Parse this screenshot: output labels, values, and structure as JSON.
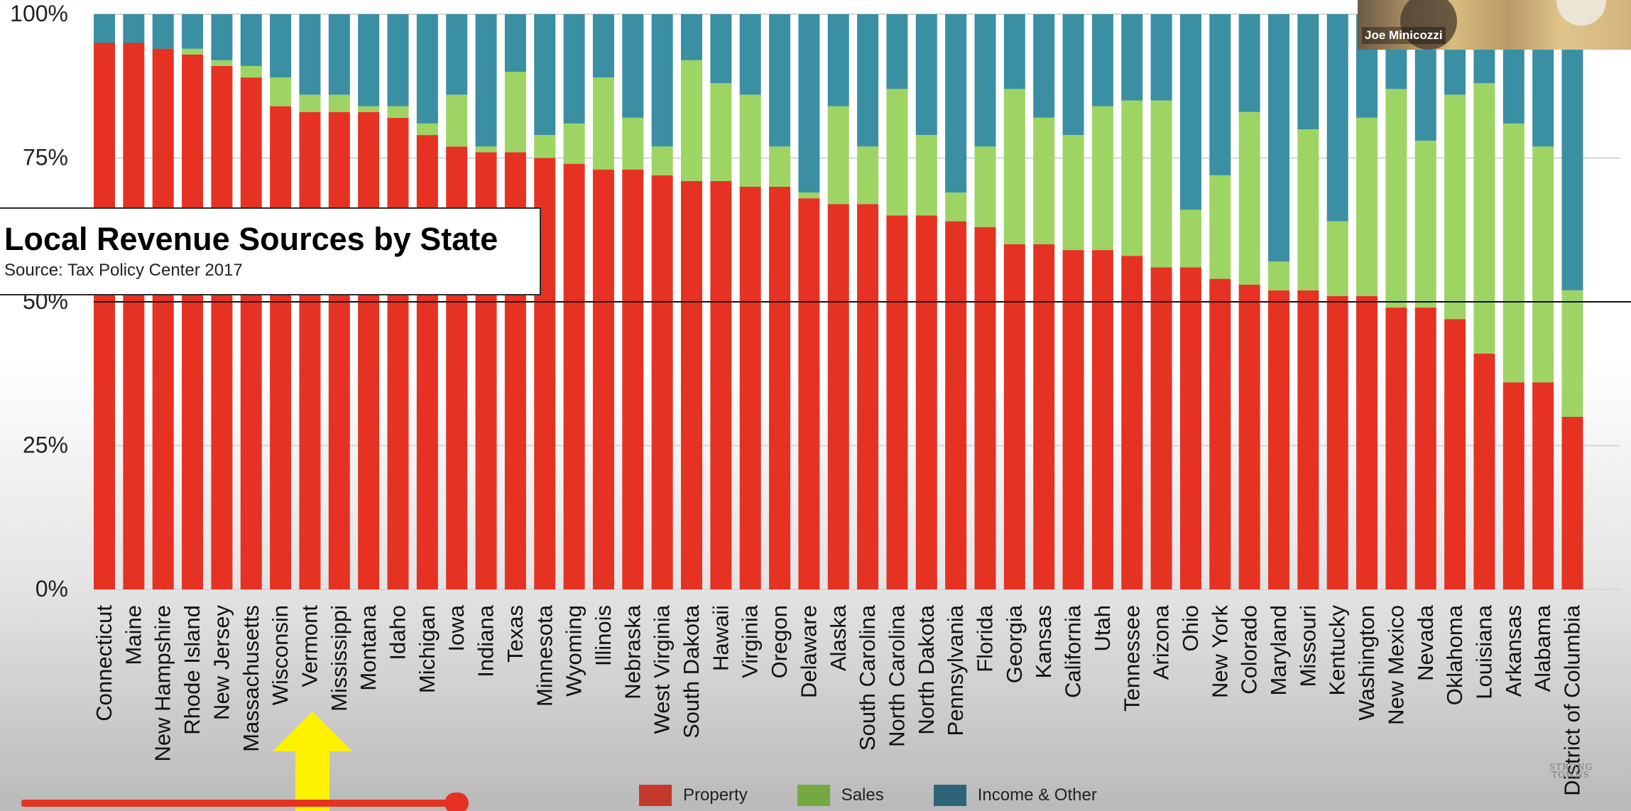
{
  "title": "Local Revenue Sources by State",
  "subtitle": "Source: Tax Policy Center 2017",
  "presenter_name": "Joe Minicozzi",
  "watermark": "STRONG TOWNS",
  "legend": [
    {
      "label": "Property",
      "color": "#c33a2c"
    },
    {
      "label": "Sales",
      "color": "#75a843"
    },
    {
      "label": "Income & Other",
      "color": "#2e6478"
    }
  ],
  "colors": {
    "property": "#e53223",
    "sales": "#9ed464",
    "income_other": "#3a8fa3",
    "pointer_arrow": "#fff200",
    "progress": "#e53223"
  },
  "chart_data": {
    "type": "bar",
    "stacked": true,
    "categories": [
      "Connecticut",
      "Maine",
      "New Hampshire",
      "Rhode Island",
      "New Jersey",
      "Massachusetts",
      "Wisconsin",
      "Vermont",
      "Mississippi",
      "Montana",
      "Idaho",
      "Michigan",
      "Iowa",
      "Indiana",
      "Texas",
      "Minnesota",
      "Wyoming",
      "Illinois",
      "Nebraska",
      "West Virginia",
      "South Dakota",
      "Hawaii",
      "Virginia",
      "Oregon",
      "Delaware",
      "Alaska",
      "South Carolina",
      "North Carolina",
      "North Dakota",
      "Pennsylvania",
      "Florida",
      "Georgia",
      "Kansas",
      "California",
      "Utah",
      "Tennessee",
      "Arizona",
      "Ohio",
      "New York",
      "Colorado",
      "Maryland",
      "Missouri",
      "Kentucky",
      "Washington",
      "New Mexico",
      "Nevada",
      "Oklahoma",
      "Louisiana",
      "Arkansas",
      "Alabama",
      "District of Columbia"
    ],
    "series": [
      {
        "name": "Property",
        "values": [
          95,
          95,
          94,
          93,
          91,
          89,
          84,
          83,
          83,
          83,
          82,
          79,
          77,
          76,
          76,
          75,
          74,
          73,
          73,
          72,
          71,
          71,
          70,
          70,
          68,
          67,
          67,
          65,
          65,
          64,
          63,
          60,
          60,
          59,
          59,
          58,
          56,
          56,
          54,
          53,
          52,
          52,
          51,
          51,
          49,
          49,
          47,
          41,
          36,
          36,
          30
        ]
      },
      {
        "name": "Sales",
        "values": [
          0,
          0,
          0,
          1,
          1,
          2,
          5,
          3,
          3,
          1,
          2,
          2,
          9,
          1,
          14,
          4,
          7,
          16,
          9,
          5,
          21,
          17,
          16,
          7,
          1,
          17,
          10,
          22,
          14,
          5,
          14,
          27,
          22,
          20,
          25,
          27,
          29,
          10,
          18,
          30,
          5,
          28,
          13,
          31,
          38,
          29,
          39,
          47,
          45,
          41,
          22
        ]
      },
      {
        "name": "Income & Other",
        "values": [
          5,
          5,
          6,
          6,
          8,
          9,
          11,
          14,
          14,
          16,
          16,
          19,
          14,
          23,
          10,
          21,
          19,
          11,
          18,
          23,
          8,
          12,
          14,
          23,
          31,
          16,
          23,
          13,
          21,
          31,
          23,
          13,
          18,
          21,
          16,
          15,
          15,
          34,
          28,
          17,
          43,
          20,
          36,
          18,
          13,
          22,
          14,
          12,
          19,
          23,
          48
        ]
      }
    ],
    "y_ticks": [
      "0%",
      "25%",
      "50%",
      "75%",
      "100%"
    ],
    "ylim": [
      0,
      100
    ],
    "reference_line": 50,
    "grid": true,
    "legend_position": "bottom"
  }
}
